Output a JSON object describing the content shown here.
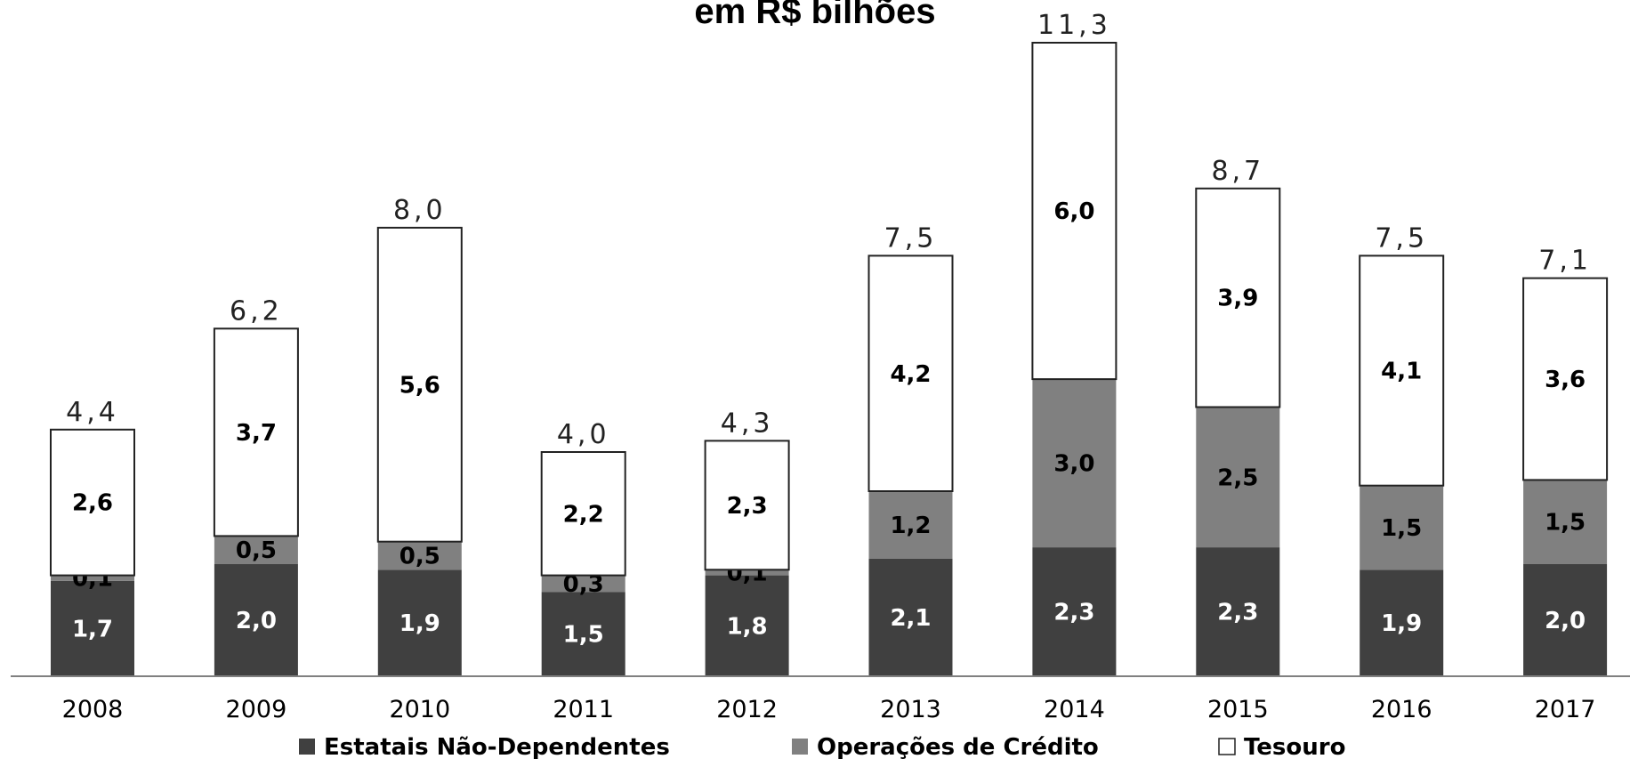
{
  "chart_data": {
    "type": "bar",
    "stacked": true,
    "title": "em R$ bilhões",
    "categories": [
      "2008",
      "2009",
      "2010",
      "2011",
      "2012",
      "2013",
      "2014",
      "2015",
      "2016",
      "2017"
    ],
    "series": [
      {
        "name": "Estatais Não-Dependentes",
        "color": "#404040",
        "values": [
          1.7,
          2.0,
          1.9,
          1.5,
          1.8,
          2.1,
          2.3,
          2.3,
          1.9,
          2.0
        ],
        "labels": [
          "1,7",
          "2,0",
          "1,9",
          "1,5",
          "1,8",
          "2,1",
          "2,3",
          "2,3",
          "1,9",
          "2,0"
        ]
      },
      {
        "name": "Operações de Crédito",
        "color": "#808080",
        "values": [
          0.1,
          0.5,
          0.5,
          0.3,
          0.1,
          1.2,
          3.0,
          2.5,
          1.5,
          1.5
        ],
        "labels": [
          "0,1",
          "0,5",
          "0,5",
          "0,3",
          "0,1",
          "1,2",
          "3,0",
          "2,5",
          "1,5",
          "1,5"
        ]
      },
      {
        "name": "Tesouro",
        "color": "#ffffff",
        "values": [
          2.6,
          3.7,
          5.6,
          2.2,
          2.3,
          4.2,
          6.0,
          3.9,
          4.1,
          3.6
        ],
        "labels": [
          "2,6",
          "3,7",
          "5,6",
          "2,2",
          "2,3",
          "4,2",
          "6,0",
          "3,9",
          "4,1",
          "3,6"
        ]
      }
    ],
    "totals": [
      4.4,
      6.2,
      8.0,
      4.0,
      4.3,
      7.5,
      11.3,
      8.7,
      7.5,
      7.1
    ],
    "total_labels": [
      "4,4",
      "6,2",
      "8,0",
      "4,0",
      "4,3",
      "7,5",
      "11,3",
      "8,7",
      "7,5",
      "7,1"
    ],
    "ylim": [
      0,
      11.3
    ],
    "grid": false,
    "legend_position": "bottom"
  }
}
